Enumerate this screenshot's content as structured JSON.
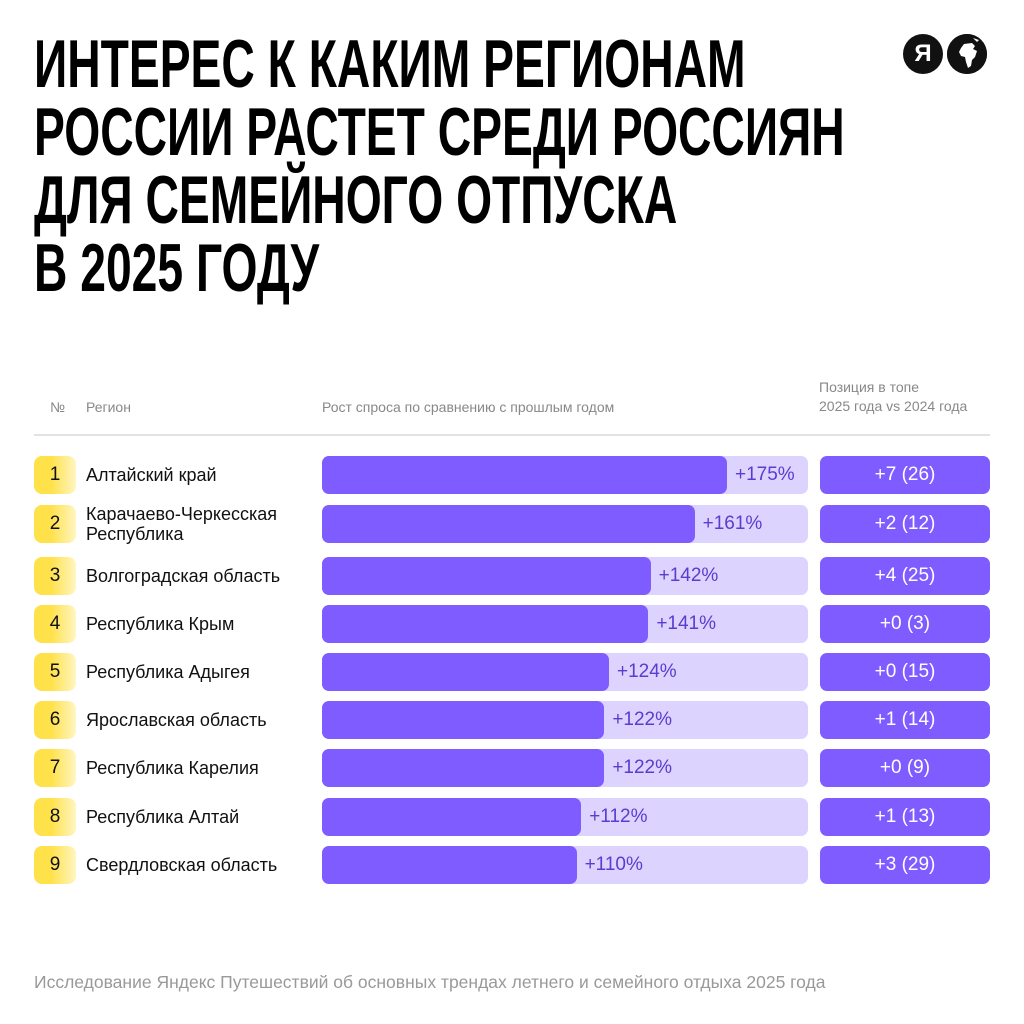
{
  "title_lines": [
    "ИНТЕРЕС К КАКИМ РЕГИОНАМ",
    "РОССИИ РАСТЕТ СРЕДИ РОССИЯН",
    "ДЛЯ СЕМЕЙНОГО ОТПУСКА",
    "В 2025 ГОДУ"
  ],
  "logos": {
    "yandex_letter": "Я",
    "globe_icon": "globe-icon"
  },
  "headers": {
    "num": "№",
    "region": "Регион",
    "growth": "Рост спроса по сравнению с прошлым годом",
    "position_line1": "Позиция в топе",
    "position_line2": "2025 года vs 2024 года"
  },
  "colors": {
    "bar": "#7f5cff",
    "track": "#dcd3ff",
    "badge": "#ffe14a"
  },
  "chart_data": {
    "type": "bar",
    "orientation": "horizontal",
    "xlabel": "Рост спроса по сравнению с прошлым годом",
    "xlim": [
      0,
      210
    ],
    "rows": [
      {
        "rank": "1",
        "region": "Алтайский край",
        "value": 175,
        "label": "+175%",
        "position": "+7 (26)"
      },
      {
        "rank": "2",
        "region": "Карачаево-Черкесская Республика",
        "value": 161,
        "label": "+161%",
        "position": "+2 (12)"
      },
      {
        "rank": "3",
        "region": "Волгоградская область",
        "value": 142,
        "label": "+142%",
        "position": "+4 (25)"
      },
      {
        "rank": "4",
        "region": "Республика Крым",
        "value": 141,
        "label": "+141%",
        "position": "+0 (3)"
      },
      {
        "rank": "5",
        "region": "Республика Адыгея",
        "value": 124,
        "label": "+124%",
        "position": "+0 (15)"
      },
      {
        "rank": "6",
        "region": "Ярославская область",
        "value": 122,
        "label": "+122%",
        "position": "+1 (14)"
      },
      {
        "rank": "7",
        "region": "Республика Карелия",
        "value": 122,
        "label": "+122%",
        "position": "+0 (9)"
      },
      {
        "rank": "8",
        "region": "Республика Алтай",
        "value": 112,
        "label": "+112%",
        "position": "+1 (13)"
      },
      {
        "rank": "9",
        "region": "Свердловская область",
        "value": 110,
        "label": "+110%",
        "position": "+3 (29)"
      }
    ]
  },
  "footer": "Исследование Яндекс Путешествий об основных трендах летнего и семейного отдыха 2025 года"
}
